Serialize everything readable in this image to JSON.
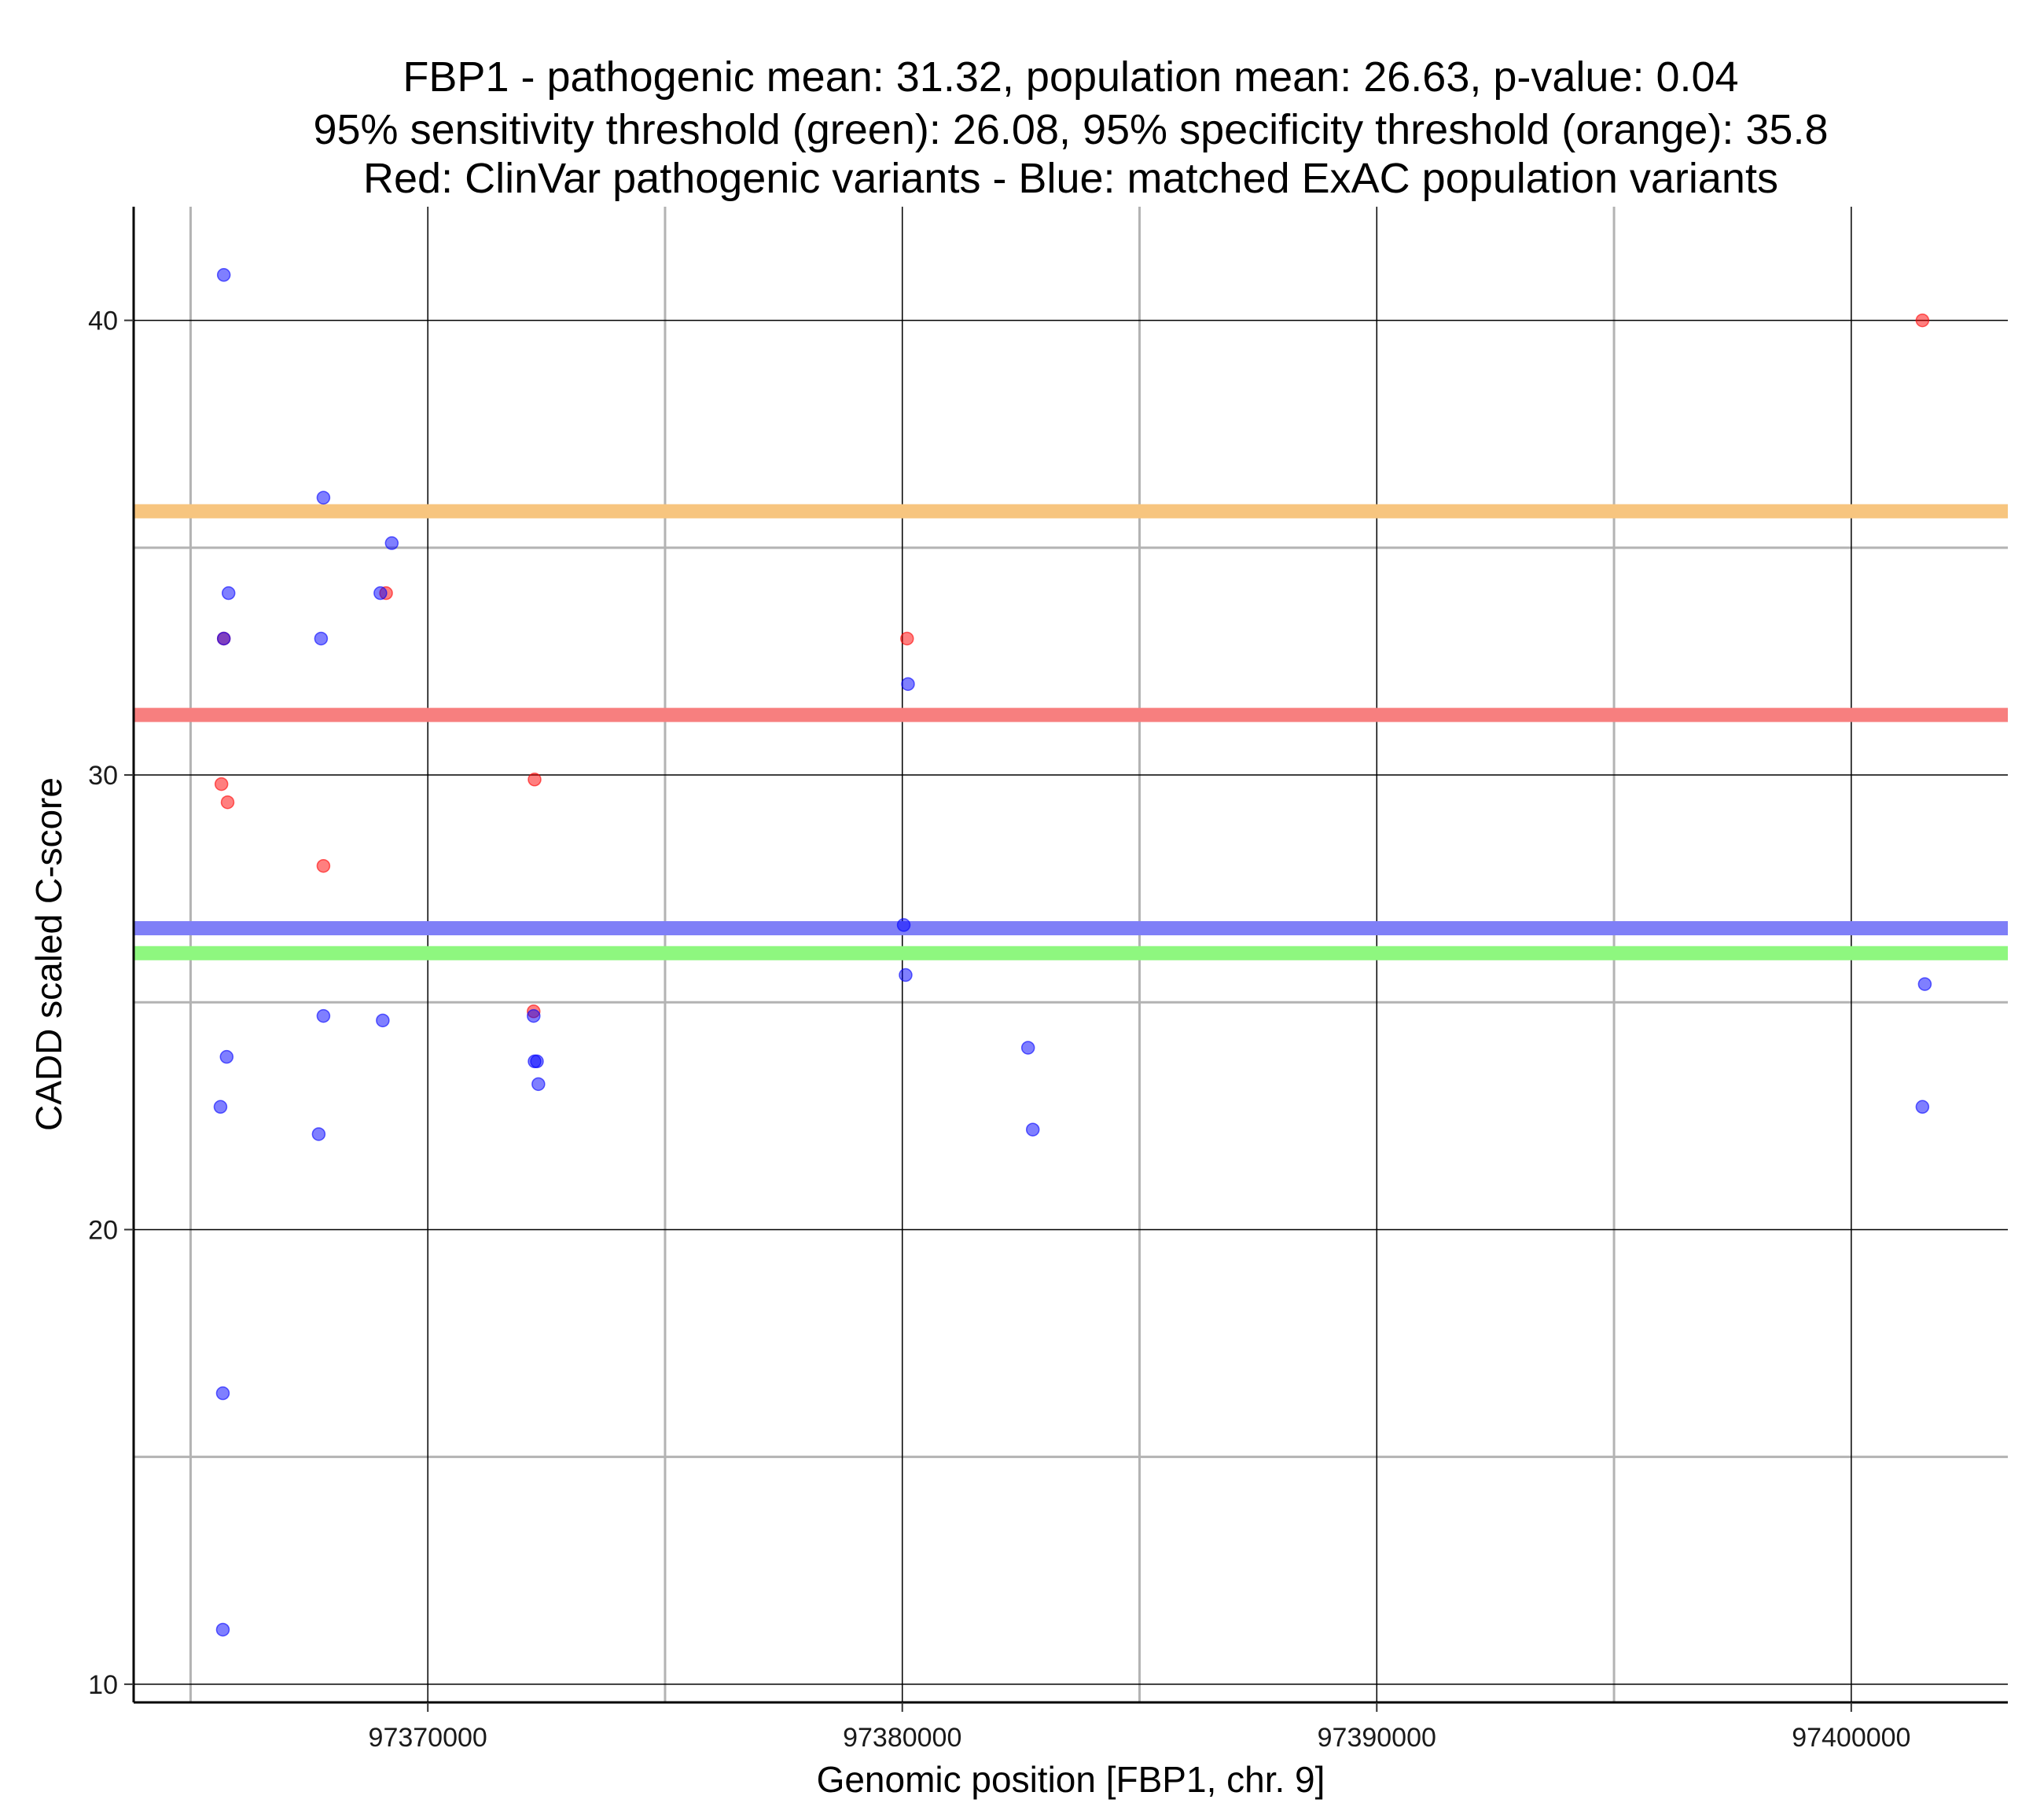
{
  "chart_data": {
    "type": "scatter",
    "title_lines": [
      "FBP1 - pathogenic mean: 31.32, population mean: 26.63, p-value: 0.04",
      "95% sensitivity threshold (green): 26.08, 95% specificity threshold (orange): 35.8",
      "Red: ClinVar pathogenic variants - Blue: matched ExAC population variants"
    ],
    "xlabel": "Genomic position [FBP1, chr. 9]",
    "ylabel": "CADD scaled C-score",
    "xlim": [
      97363800,
      97403300
    ],
    "ylim": [
      9.6,
      42.5
    ],
    "x_ticks": [
      97370000,
      97380000,
      97390000,
      97400000
    ],
    "x_tick_labels": [
      "97370000",
      "97380000",
      "97390000",
      "97400000"
    ],
    "y_ticks": [
      10,
      20,
      30,
      40
    ],
    "y_tick_labels": [
      "10",
      "20",
      "30",
      "40"
    ],
    "x_minor_grid": [
      97365000,
      97375000,
      97385000,
      97395000
    ],
    "y_minor_grid": [
      15,
      25,
      35
    ],
    "hlines": [
      {
        "name": "specificity-threshold",
        "value": 35.8,
        "color": "#f7c57f"
      },
      {
        "name": "pathogenic-mean",
        "value": 31.32,
        "color": "#f77f7f"
      },
      {
        "name": "population-mean",
        "value": 26.63,
        "color": "#7f7ff7"
      },
      {
        "name": "sensitivity-threshold",
        "value": 26.08,
        "color": "#8ef77f"
      }
    ],
    "series": [
      {
        "name": "ClinVar pathogenic variants",
        "color": "#ff0000",
        "points": [
          {
            "x": 97365700,
            "y": 33.0
          },
          {
            "x": 97365650,
            "y": 29.8
          },
          {
            "x": 97365780,
            "y": 29.4
          },
          {
            "x": 97367800,
            "y": 28.0
          },
          {
            "x": 97369120,
            "y": 34.0
          },
          {
            "x": 97372250,
            "y": 29.9
          },
          {
            "x": 97372230,
            "y": 24.8
          },
          {
            "x": 97380100,
            "y": 33.0
          },
          {
            "x": 97401500,
            "y": 40.0
          }
        ]
      },
      {
        "name": "matched ExAC population variants",
        "color": "#0000ff",
        "points": [
          {
            "x": 97365700,
            "y": 41.0
          },
          {
            "x": 97367800,
            "y": 36.1
          },
          {
            "x": 97369240,
            "y": 35.1
          },
          {
            "x": 97365800,
            "y": 34.0
          },
          {
            "x": 97369000,
            "y": 34.0
          },
          {
            "x": 97365700,
            "y": 33.0
          },
          {
            "x": 97367750,
            "y": 33.0
          },
          {
            "x": 97380120,
            "y": 32.0
          },
          {
            "x": 97380030,
            "y": 26.7
          },
          {
            "x": 97380070,
            "y": 25.6
          },
          {
            "x": 97401550,
            "y": 25.4
          },
          {
            "x": 97367800,
            "y": 24.7
          },
          {
            "x": 97369050,
            "y": 24.6
          },
          {
            "x": 97372230,
            "y": 24.7
          },
          {
            "x": 97382650,
            "y": 24.0
          },
          {
            "x": 97365760,
            "y": 23.8
          },
          {
            "x": 97372250,
            "y": 23.7
          },
          {
            "x": 97372300,
            "y": 23.7
          },
          {
            "x": 97372330,
            "y": 23.2
          },
          {
            "x": 97365630,
            "y": 22.7
          },
          {
            "x": 97401500,
            "y": 22.7
          },
          {
            "x": 97367700,
            "y": 22.1
          },
          {
            "x": 97382750,
            "y": 22.2
          },
          {
            "x": 97365680,
            "y": 16.4
          },
          {
            "x": 97365680,
            "y": 11.2
          }
        ]
      }
    ]
  }
}
